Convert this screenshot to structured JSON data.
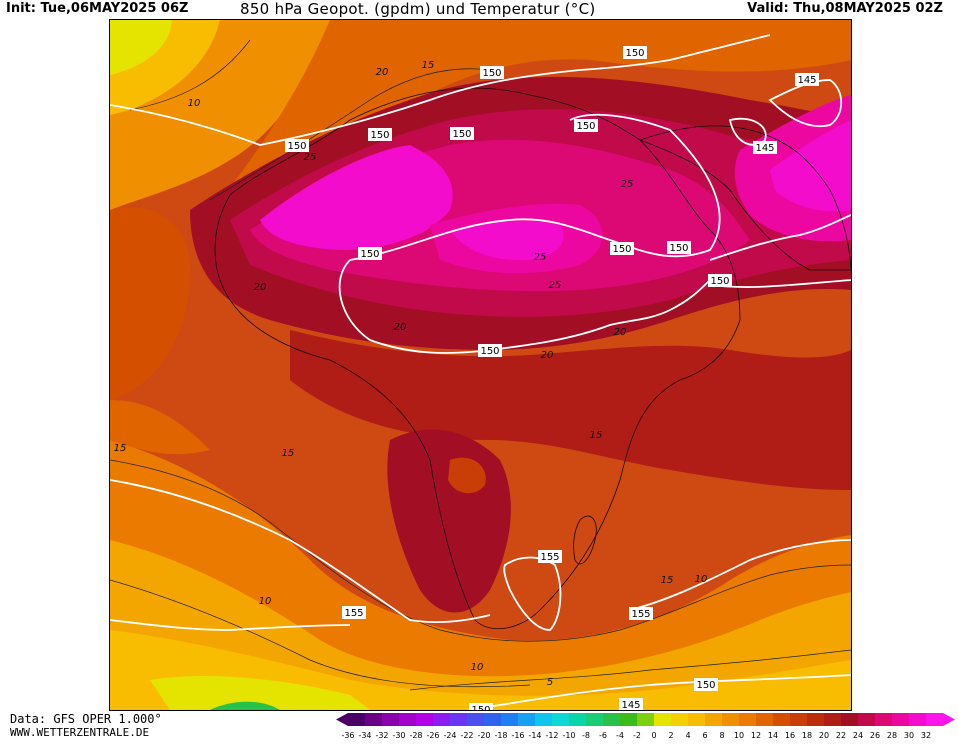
{
  "header": {
    "init": "Init: Tue,06MAY2025 06Z",
    "title": "850 hPa Geopot. (gpdm) und Temperatur (°C)",
    "valid": "Valid: Thu,08MAY2025 02Z"
  },
  "footer": {
    "data_source": "Data: GFS OPER 1.000°",
    "website": "WWW.WETTERZENTRALE.DE"
  },
  "legend": {
    "ticks": [
      "-36",
      "-34",
      "-32",
      "-30",
      "-28",
      "-26",
      "-24",
      "-22",
      "-20",
      "-18",
      "-16",
      "-14",
      "-12",
      "-10",
      "-8",
      "-6",
      "-4",
      "-2",
      "0",
      "2",
      "4",
      "6",
      "8",
      "10",
      "12",
      "14",
      "16",
      "18",
      "20",
      "22",
      "24",
      "26",
      "28",
      "30",
      "32"
    ],
    "colors": [
      "#4b0066",
      "#6a0088",
      "#8a00aa",
      "#a400cc",
      "#b400e6",
      "#8c1cf2",
      "#6a36f4",
      "#4b4ff0",
      "#2f62ee",
      "#1f7ff0",
      "#16a2f0",
      "#10c4ee",
      "#0ed8d4",
      "#0cd4a8",
      "#18cc78",
      "#28c24a",
      "#3cbc1c",
      "#7cd010",
      "#e4e400",
      "#f4d000",
      "#f8bc00",
      "#f4a600",
      "#f09000",
      "#ea7a00",
      "#e06400",
      "#d45000",
      "#c83e06",
      "#bc2c0c",
      "#b01c16",
      "#a20e24",
      "#c00a4a",
      "#dc0874",
      "#ec08a0",
      "#f40ccc",
      "#f816ea"
    ]
  },
  "map": {
    "geopotential_labels": [
      "150",
      "150",
      "150",
      "150",
      "150",
      "150",
      "150",
      "150",
      "150",
      "150",
      "145",
      "145",
      "150",
      "155",
      "155",
      "155",
      "150",
      "145",
      "150"
    ],
    "temperature_labels": [
      "20",
      "15",
      "10",
      "25",
      "25",
      "25",
      "20",
      "20",
      "25",
      "20",
      "15",
      "15",
      "15",
      "10",
      "10",
      "15",
      "10",
      "5",
      "20"
    ]
  }
}
